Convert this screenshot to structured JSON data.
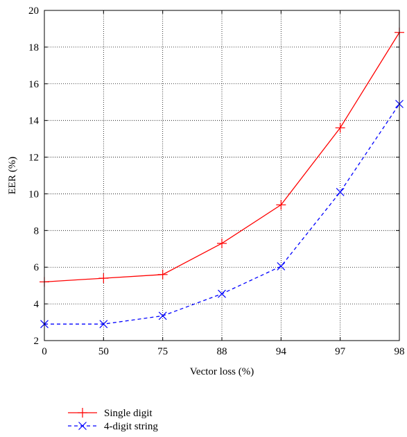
{
  "chart_data": {
    "type": "line",
    "title": "",
    "xlabel": "Vector loss (%)",
    "ylabel": "EER (%)",
    "categories": [
      "0",
      "50",
      "75",
      "88",
      "94",
      "97",
      "98"
    ],
    "ylim": [
      2,
      20
    ],
    "yticks": [
      2,
      4,
      6,
      8,
      10,
      12,
      14,
      16,
      18,
      20
    ],
    "grid": true,
    "legend_position": "below",
    "series": [
      {
        "name": "Single digit",
        "values": [
          5.2,
          5.4,
          5.6,
          7.3,
          9.4,
          13.6,
          18.8
        ],
        "color": "#ff0000",
        "line_style": "solid",
        "marker": "plus"
      },
      {
        "name": "4-digit string",
        "values": [
          2.9,
          2.9,
          3.35,
          4.55,
          6.05,
          10.1,
          14.9
        ],
        "color": "#0000ff",
        "line_style": "dashed",
        "marker": "x"
      }
    ]
  }
}
